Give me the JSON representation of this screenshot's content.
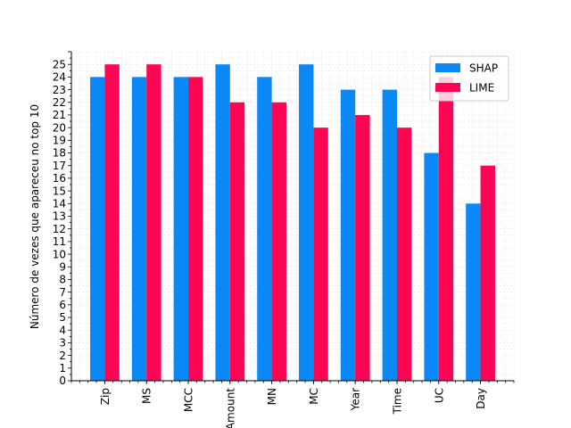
{
  "chart_data": {
    "type": "bar",
    "ylabel": "Número de vezes que apareceu no top 10",
    "xlabel": "",
    "categories": [
      "Zip",
      "MS",
      "MCC",
      "Amount",
      "MN",
      "MC",
      "Year",
      "Time",
      "UC",
      "Day"
    ],
    "series": [
      {
        "name": "SHAP",
        "color": "#0a88f5",
        "values": [
          24,
          24,
          24,
          25,
          24,
          25,
          23,
          23,
          18,
          14
        ]
      },
      {
        "name": "LIME",
        "color": "#fc0552",
        "values": [
          25,
          25,
          24,
          22,
          22,
          20,
          21,
          20,
          24,
          17
        ]
      }
    ],
    "ylim": [
      0,
      26
    ],
    "yticks": [
      0,
      1,
      2,
      3,
      4,
      5,
      6,
      7,
      8,
      9,
      10,
      11,
      12,
      13,
      14,
      15,
      16,
      17,
      18,
      19,
      20,
      21,
      22,
      23,
      24,
      25
    ],
    "grid": true,
    "legend_position": "top-right"
  }
}
